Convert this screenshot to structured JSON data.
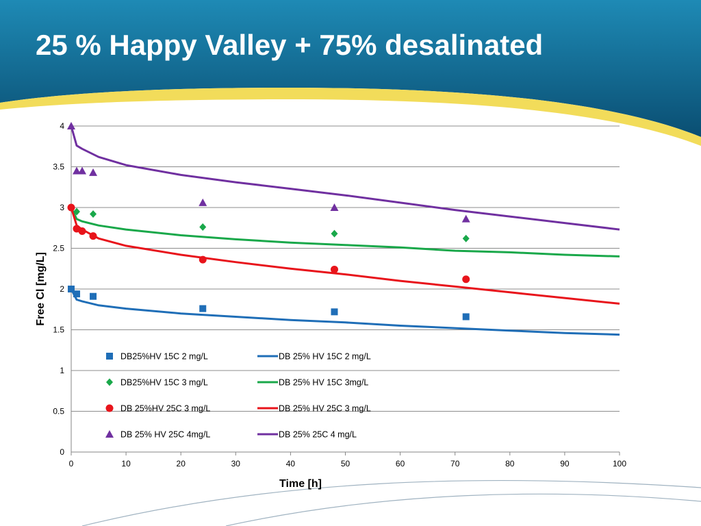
{
  "slide": {
    "title": "25 % Happy Valley + 75% desalinated",
    "colors": {
      "header_dark": "#0a4e72",
      "header_light": "#1e8ab5",
      "swoosh": "#f2dc5a"
    }
  },
  "chart_data": {
    "type": "scatter",
    "title": "",
    "xlabel": "Time [h]",
    "ylabel": "Free Cl [mg/L]",
    "xlim": [
      0,
      100
    ],
    "ylim": [
      0,
      4
    ],
    "xticks": [
      "0",
      "10",
      "20",
      "30",
      "40",
      "50",
      "60",
      "70",
      "80",
      "90",
      "100"
    ],
    "yticks": [
      "0",
      "0.5",
      "1",
      "1.5",
      "2",
      "2.5",
      "3",
      "3.5",
      "4"
    ],
    "grid": "horizontal",
    "legend_position": "inside-bottom",
    "series": [
      {
        "name": "DB25%HV 15C 2 mg/L",
        "kind": "scatter",
        "marker": "square",
        "color": "#1f6eb7",
        "points": [
          [
            0,
            2.0
          ],
          [
            1,
            1.94
          ],
          [
            4,
            1.91
          ],
          [
            24,
            1.76
          ],
          [
            48,
            1.72
          ],
          [
            72,
            1.66
          ]
        ]
      },
      {
        "name": "DB 25% HV 15C 2 mg/L",
        "kind": "line",
        "color": "#1f6eb7",
        "points": [
          [
            0,
            2.0
          ],
          [
            1,
            1.87
          ],
          [
            2,
            1.85
          ],
          [
            5,
            1.8
          ],
          [
            10,
            1.76
          ],
          [
            20,
            1.7
          ],
          [
            30,
            1.66
          ],
          [
            40,
            1.62
          ],
          [
            50,
            1.59
          ],
          [
            60,
            1.55
          ],
          [
            70,
            1.52
          ],
          [
            80,
            1.49
          ],
          [
            90,
            1.46
          ],
          [
            100,
            1.44
          ]
        ]
      },
      {
        "name": "DB25%HV 15C 3 mg/L",
        "kind": "scatter",
        "marker": "diamond",
        "color": "#19a84a",
        "points": [
          [
            1,
            2.95
          ],
          [
            4,
            2.92
          ],
          [
            24,
            2.76
          ],
          [
            48,
            2.68
          ],
          [
            72,
            2.62
          ]
        ]
      },
      {
        "name": "DB 25% HV 15C 3mg/L",
        "kind": "line",
        "color": "#19a84a",
        "points": [
          [
            0,
            3.0
          ],
          [
            1,
            2.86
          ],
          [
            2,
            2.83
          ],
          [
            5,
            2.78
          ],
          [
            10,
            2.73
          ],
          [
            20,
            2.66
          ],
          [
            30,
            2.61
          ],
          [
            40,
            2.57
          ],
          [
            50,
            2.54
          ],
          [
            60,
            2.51
          ],
          [
            70,
            2.47
          ],
          [
            80,
            2.45
          ],
          [
            90,
            2.42
          ],
          [
            100,
            2.4
          ]
        ]
      },
      {
        "name": "DB 25%HV 25C 3 mg/L",
        "kind": "scatter",
        "marker": "circle",
        "color": "#e8141b",
        "points": [
          [
            0,
            3.0
          ],
          [
            1,
            2.74
          ],
          [
            2,
            2.71
          ],
          [
            4,
            2.65
          ],
          [
            24,
            2.36
          ],
          [
            48,
            2.24
          ],
          [
            72,
            2.12
          ]
        ]
      },
      {
        "name": "DB 25% HV 25C 3 mg/L",
        "kind": "line",
        "color": "#e8141b",
        "points": [
          [
            0,
            3.0
          ],
          [
            1,
            2.78
          ],
          [
            2,
            2.73
          ],
          [
            5,
            2.62
          ],
          [
            10,
            2.53
          ],
          [
            20,
            2.42
          ],
          [
            30,
            2.33
          ],
          [
            40,
            2.25
          ],
          [
            50,
            2.18
          ],
          [
            60,
            2.1
          ],
          [
            70,
            2.03
          ],
          [
            80,
            1.96
          ],
          [
            90,
            1.89
          ],
          [
            100,
            1.82
          ]
        ]
      },
      {
        "name": "DB 25% HV 25C 4mg/L",
        "kind": "scatter",
        "marker": "triangle",
        "color": "#7030a0",
        "points": [
          [
            0,
            4.0
          ],
          [
            1,
            3.45
          ],
          [
            2,
            3.45
          ],
          [
            4,
            3.43
          ],
          [
            24,
            3.06
          ],
          [
            48,
            3.0
          ],
          [
            72,
            2.86
          ]
        ]
      },
      {
        "name": "DB 25% 25C 4 mg/L",
        "kind": "line",
        "color": "#7030a0",
        "points": [
          [
            0,
            4.0
          ],
          [
            1,
            3.76
          ],
          [
            2,
            3.72
          ],
          [
            5,
            3.62
          ],
          [
            10,
            3.52
          ],
          [
            20,
            3.4
          ],
          [
            30,
            3.31
          ],
          [
            40,
            3.23
          ],
          [
            50,
            3.15
          ],
          [
            60,
            3.06
          ],
          [
            70,
            2.97
          ],
          [
            80,
            2.89
          ],
          [
            90,
            2.81
          ],
          [
            100,
            2.73
          ]
        ]
      }
    ]
  }
}
